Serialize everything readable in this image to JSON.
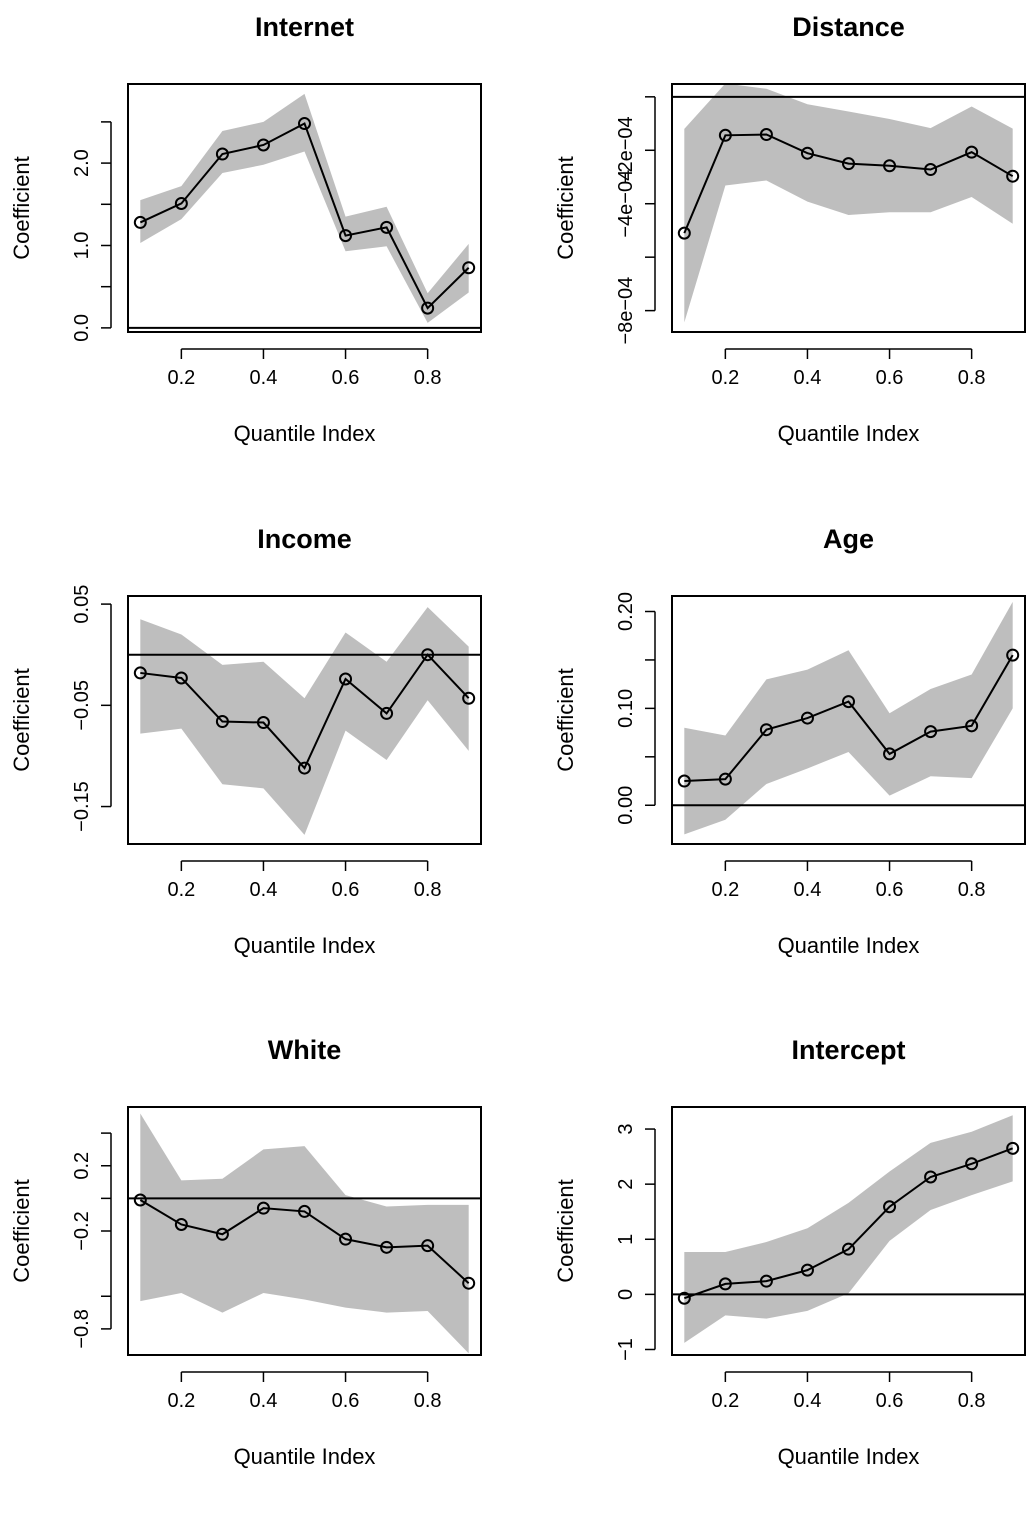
{
  "figure": {
    "xlabel": "Quantile Index",
    "ylabel": "Coefficient",
    "band_color": "#bebebe",
    "line_color": "#000000"
  },
  "chart_data": [
    {
      "type": "line",
      "title": "Internet",
      "xlabel": "Quantile Index",
      "ylabel": "Coefficient",
      "x": [
        0.1,
        0.2,
        0.3,
        0.4,
        0.5,
        0.6,
        0.7,
        0.8,
        0.9
      ],
      "series": [
        {
          "values": [
            1.28,
            1.51,
            2.11,
            2.22,
            2.48,
            1.12,
            1.22,
            0.24,
            0.73
          ]
        },
        {
          "role": "lower bound",
          "values": [
            1.03,
            1.32,
            1.88,
            1.98,
            2.14,
            0.93,
            0.99,
            0.06,
            0.43
          ]
        },
        {
          "role": "upper bound",
          "values": [
            1.55,
            1.72,
            2.39,
            2.5,
            2.84,
            1.35,
            1.47,
            0.42,
            1.02
          ]
        }
      ],
      "xlim": [
        0.07,
        0.93
      ],
      "ylim": [
        -0.05,
        2.96
      ],
      "xticks": [
        0.2,
        0.4,
        0.6,
        0.8
      ],
      "xtick_labels": [
        "0.2",
        "0.4",
        "0.6",
        "0.8"
      ],
      "yticks": [
        0.0,
        0.5,
        1.0,
        1.5,
        2.0,
        2.5
      ],
      "ytick_labels": [
        "0.0",
        "",
        "1.0",
        "",
        "2.0",
        ""
      ],
      "hline": 0
    },
    {
      "type": "line",
      "title": "Distance",
      "xlabel": "Quantile Index",
      "ylabel": "Coefficient",
      "x": [
        0.1,
        0.2,
        0.3,
        0.4,
        0.5,
        0.6,
        0.7,
        0.8,
        0.9
      ],
      "series": [
        {
          "values": [
            -0.00051,
            -0.000144,
            -0.000141,
            -0.000211,
            -0.00025,
            -0.000258,
            -0.000272,
            -0.000207,
            -0.000297
          ]
        },
        {
          "role": "lower bound",
          "values": [
            -0.000844,
            -0.000332,
            -0.000313,
            -0.000392,
            -0.000442,
            -0.000432,
            -0.000432,
            -0.000375,
            -0.000475
          ]
        },
        {
          "role": "upper bound",
          "values": [
            -0.00012,
            5e-05,
            3e-05,
            -2.8e-05,
            -5.5e-05,
            -8.3e-05,
            -0.000117,
            -3.6e-05,
            -0.000119
          ]
        }
      ],
      "xlim": [
        0.07,
        0.93
      ],
      "ylim": [
        -0.00088,
        4.8e-05
      ],
      "xticks": [
        0.2,
        0.4,
        0.6,
        0.8
      ],
      "xtick_labels": [
        "0.2",
        "0.4",
        "0.6",
        "0.8"
      ],
      "yticks": [
        -0.0008,
        -0.0006,
        -0.0004,
        -0.0002
      ],
      "ytick_labels": [
        "−8e−04",
        "",
        "−4e−04",
        "−2e−04"
      ],
      "extra_ytick": -0.0,
      "hline": 0
    },
    {
      "type": "line",
      "title": "Income",
      "xlabel": "Quantile Index",
      "ylabel": "Coefficient",
      "x": [
        0.1,
        0.2,
        0.3,
        0.4,
        0.5,
        0.6,
        0.7,
        0.8,
        0.9
      ],
      "series": [
        {
          "values": [
            -0.018,
            -0.023,
            -0.066,
            -0.067,
            -0.112,
            -0.024,
            -0.058,
            0.0,
            -0.043
          ]
        },
        {
          "role": "lower bound",
          "values": [
            -0.078,
            -0.073,
            -0.128,
            -0.132,
            -0.178,
            -0.075,
            -0.104,
            -0.045,
            -0.095
          ]
        },
        {
          "role": "upper bound",
          "values": [
            0.035,
            0.02,
            -0.01,
            -0.007,
            -0.043,
            0.022,
            -0.007,
            0.047,
            0.008
          ]
        }
      ],
      "xlim": [
        0.07,
        0.93
      ],
      "ylim": [
        -0.187,
        0.058
      ],
      "xticks": [
        0.2,
        0.4,
        0.6,
        0.8
      ],
      "xtick_labels": [
        "0.2",
        "0.4",
        "0.6",
        "0.8"
      ],
      "yticks": [
        -0.15,
        -0.05,
        0.05
      ],
      "ytick_labels": [
        "−0.15",
        "−0.05",
        "0.05"
      ],
      "hline": 0
    },
    {
      "type": "line",
      "title": "Age",
      "xlabel": "Quantile Index",
      "ylabel": "Coefficient",
      "x": [
        0.1,
        0.2,
        0.3,
        0.4,
        0.5,
        0.6,
        0.7,
        0.8,
        0.9
      ],
      "series": [
        {
          "values": [
            0.025,
            0.027,
            0.078,
            0.09,
            0.107,
            0.053,
            0.076,
            0.082,
            0.155
          ]
        },
        {
          "role": "lower bound",
          "values": [
            -0.03,
            -0.015,
            0.022,
            0.038,
            0.055,
            0.01,
            0.03,
            0.028,
            0.1
          ]
        },
        {
          "role": "upper bound",
          "values": [
            0.08,
            0.072,
            0.13,
            0.14,
            0.16,
            0.095,
            0.12,
            0.135,
            0.21
          ]
        }
      ],
      "xlim": [
        0.07,
        0.93
      ],
      "ylim": [
        -0.04,
        0.216
      ],
      "xticks": [
        0.2,
        0.4,
        0.6,
        0.8
      ],
      "xtick_labels": [
        "0.2",
        "0.4",
        "0.6",
        "0.8"
      ],
      "yticks": [
        0.0,
        0.05,
        0.1,
        0.15,
        0.2
      ],
      "ytick_labels": [
        "0.00",
        "",
        "0.10",
        "",
        "0.20"
      ],
      "hline": 0
    },
    {
      "type": "line",
      "title": "White",
      "xlabel": "Quantile Index",
      "ylabel": "Coefficient",
      "x": [
        0.1,
        0.2,
        0.3,
        0.4,
        0.5,
        0.6,
        0.7,
        0.8,
        0.9
      ],
      "series": [
        {
          "values": [
            -0.01,
            -0.16,
            -0.22,
            -0.06,
            -0.08,
            -0.25,
            -0.3,
            -0.29,
            -0.52
          ]
        },
        {
          "role": "lower bound",
          "values": [
            -0.63,
            -0.58,
            -0.7,
            -0.58,
            -0.62,
            -0.67,
            -0.7,
            -0.69,
            -0.95
          ]
        },
        {
          "role": "upper bound",
          "values": [
            0.52,
            0.11,
            0.12,
            0.3,
            0.32,
            0.02,
            -0.05,
            -0.04,
            -0.04
          ]
        }
      ],
      "xlim": [
        0.07,
        0.93
      ],
      "ylim": [
        -0.96,
        0.56
      ],
      "xticks": [
        0.2,
        0.4,
        0.6,
        0.8
      ],
      "xtick_labels": [
        "0.2",
        "0.4",
        "0.6",
        "0.8"
      ],
      "yticks": [
        -0.8,
        -0.6,
        -0.2,
        0.0,
        0.2,
        0.4
      ],
      "ytick_labels": [
        "−0.8",
        "",
        "−0.2",
        "",
        "0.2",
        ""
      ],
      "hline": 0
    },
    {
      "type": "line",
      "title": "Intercept",
      "xlabel": "Quantile Index",
      "ylabel": "Coefficient",
      "x": [
        0.1,
        0.2,
        0.3,
        0.4,
        0.5,
        0.6,
        0.7,
        0.8,
        0.9
      ],
      "series": [
        {
          "values": [
            -0.07,
            0.19,
            0.24,
            0.44,
            0.82,
            1.59,
            2.13,
            2.37,
            2.65
          ]
        },
        {
          "role": "lower bound",
          "values": [
            -0.88,
            -0.38,
            -0.44,
            -0.3,
            0.02,
            0.97,
            1.53,
            1.8,
            2.05
          ]
        },
        {
          "role": "upper bound",
          "values": [
            0.77,
            0.77,
            0.95,
            1.2,
            1.66,
            2.23,
            2.75,
            2.95,
            3.25
          ]
        }
      ],
      "xlim": [
        0.07,
        0.93
      ],
      "ylim": [
        -1.1,
        3.4
      ],
      "xticks": [
        0.2,
        0.4,
        0.6,
        0.8
      ],
      "xtick_labels": [
        "0.2",
        "0.4",
        "0.6",
        "0.8"
      ],
      "yticks": [
        -1,
        0,
        1,
        2,
        3
      ],
      "ytick_labels": [
        "−1",
        "0",
        "1",
        "2",
        "3"
      ],
      "hline": 0
    }
  ]
}
